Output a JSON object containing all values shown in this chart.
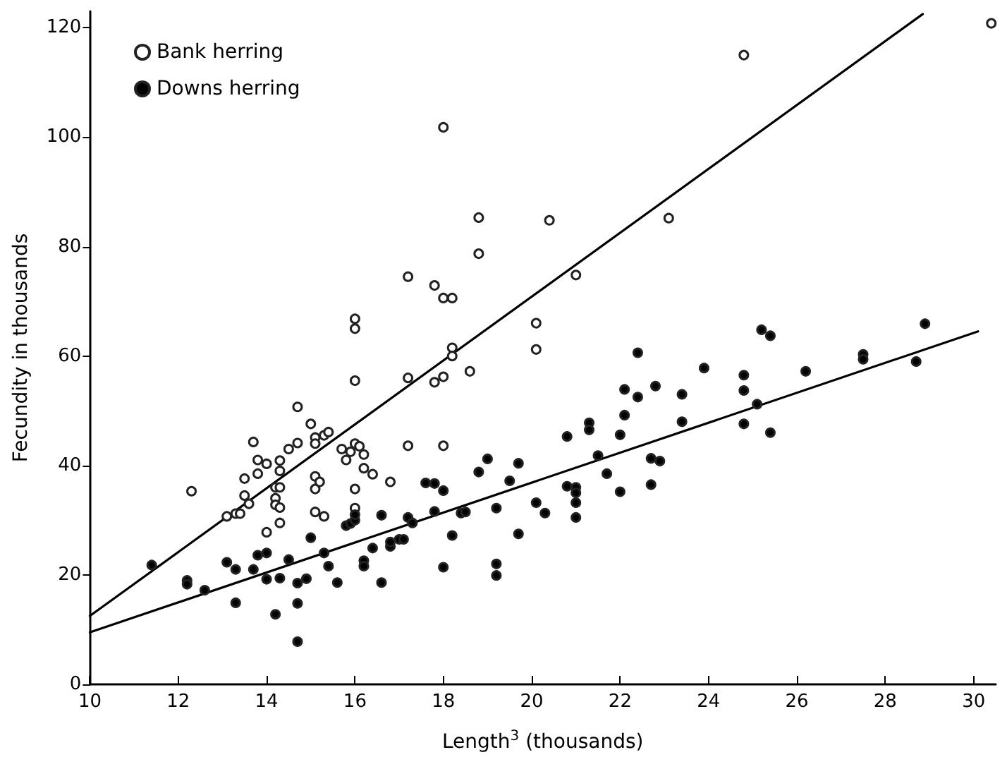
{
  "chart_data": {
    "type": "scatter",
    "xlabel": "Length$^{3}$ (thousands)",
    "ylabel": "Fecundity in thousands",
    "xlim": [
      10,
      30.5
    ],
    "xticks": [
      10,
      12,
      14,
      16,
      18,
      20,
      22,
      24,
      26,
      28,
      30
    ],
    "ylim": [
      0,
      123
    ],
    "yticks": [
      0,
      20,
      40,
      60,
      80,
      100,
      120
    ],
    "grid": false,
    "legend": "top left",
    "marker": "circle",
    "series": [
      {
        "name": "Bank herring",
        "color": "#ffffff",
        "x": [
          12.3,
          13.1,
          13.3,
          13.4,
          13.5,
          13.5,
          13.7,
          13.6,
          13.8,
          13.8,
          14.0,
          14.0,
          14.2,
          14.2,
          14.2,
          14.3,
          14.3,
          14.3,
          14.3,
          14.3,
          14.5,
          14.7,
          14.7,
          15.0,
          15.1,
          15.1,
          15.3,
          15.4,
          15.1,
          15.1,
          15.2,
          15.1,
          15.3,
          15.7,
          15.8,
          15.9,
          16.0,
          16.1,
          16.2,
          16.2,
          16.4,
          16.0,
          16.0,
          16.0,
          16.0,
          16.0,
          16.8,
          17.2,
          17.2,
          17.2,
          17.8,
          18.0,
          18.2,
          17.8,
          18.0,
          18.0,
          18.0,
          18.2,
          18.2,
          18.6,
          18.8,
          18.8,
          20.1,
          20.1,
          20.4,
          21.0,
          23.1,
          24.8,
          30.4
        ],
        "values": [
          35.3,
          30.7,
          31.2,
          31.2,
          34.5,
          37.6,
          44.3,
          33,
          41,
          38.5,
          40.3,
          27.8,
          36,
          34,
          32.8,
          39,
          40.9,
          36,
          32.3,
          29.5,
          43,
          44.1,
          50.7,
          47.6,
          45.1,
          44,
          45.5,
          46.1,
          38,
          35.7,
          37,
          31.5,
          30.7,
          43,
          41,
          42.5,
          44,
          43.5,
          42,
          39.5,
          38.4,
          66.8,
          65,
          55.5,
          35.7,
          32.2,
          37,
          74.5,
          56,
          43.6,
          72.9,
          70.6,
          70.6,
          55.2,
          56.2,
          43.6,
          101.8,
          61.5,
          60,
          57.2,
          85.3,
          78.7,
          66,
          61.2,
          84.8,
          74.8,
          85.2,
          115,
          120.8
        ]
      },
      {
        "name": "Downs herring",
        "color": "#000000",
        "x": [
          11.4,
          12.2,
          12.2,
          12.6,
          13.1,
          13.3,
          13.3,
          13.7,
          13.8,
          14.0,
          14.0,
          14.2,
          14.3,
          14.5,
          14.7,
          14.7,
          14.7,
          14.9,
          15.0,
          15.3,
          15.4,
          15.6,
          15.8,
          15.9,
          16.0,
          16.0,
          16.2,
          16.2,
          16.4,
          16.6,
          16.6,
          16.8,
          16.8,
          17.0,
          17.1,
          17.2,
          17.3,
          17.6,
          17.8,
          17.8,
          18.0,
          18.0,
          18.2,
          18.4,
          18.5,
          18.8,
          19.0,
          19.2,
          19.2,
          19.2,
          19.5,
          19.7,
          19.7,
          20.1,
          20.3,
          20.8,
          20.8,
          21.0,
          21.0,
          21.0,
          21.0,
          21.3,
          21.3,
          21.5,
          21.7,
          22.0,
          22.0,
          22.1,
          22.1,
          22.4,
          22.4,
          22.7,
          22.7,
          22.8,
          22.9,
          23.4,
          23.4,
          23.9,
          24.8,
          24.8,
          24.8,
          25.1,
          25.2,
          25.4,
          25.4,
          26.2,
          27.5,
          27.5,
          28.7,
          28.9
        ],
        "values": [
          21.8,
          19,
          18.3,
          17.2,
          22.3,
          21,
          14.9,
          21,
          23.6,
          24,
          19.2,
          12.8,
          19.4,
          22.8,
          18.5,
          14.8,
          7.8,
          19.3,
          26.8,
          24,
          21.6,
          18.6,
          29,
          29.4,
          30,
          31,
          22.6,
          21.6,
          24.9,
          30.9,
          18.6,
          25.2,
          26,
          26.5,
          26.5,
          30.5,
          29.5,
          36.8,
          36.7,
          31.6,
          35.4,
          21.4,
          27.2,
          31.3,
          31.5,
          38.8,
          41.2,
          32.2,
          22,
          19.9,
          37.2,
          40.4,
          27.5,
          33.2,
          31.3,
          45.3,
          36.2,
          36,
          35,
          33.2,
          30.5,
          47.8,
          46.5,
          41.8,
          38.5,
          45.6,
          35.2,
          53.9,
          49.2,
          60.6,
          52.5,
          41.3,
          36.5,
          54.5,
          40.8,
          53,
          48,
          57.8,
          56.5,
          53.7,
          47.6,
          51.2,
          64.8,
          63.7,
          46,
          57.2,
          60.3,
          59.4,
          59,
          65.9
        ]
      },
      {
        "type": "line",
        "color": "#000000",
        "marker": "none",
        "x": [
          10,
          28.85
        ],
        "values": [
          12.5,
          122.5
        ]
      },
      {
        "type": "line",
        "color": "#000000",
        "marker": "none",
        "x": [
          10,
          30.1
        ],
        "values": [
          9.5,
          64.5
        ]
      }
    ]
  }
}
